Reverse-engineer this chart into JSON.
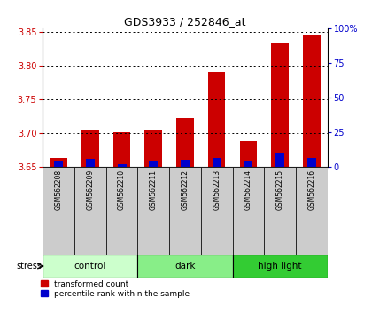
{
  "title": "GDS3933 / 252846_at",
  "samples": [
    "GSM562208",
    "GSM562209",
    "GSM562210",
    "GSM562211",
    "GSM562212",
    "GSM562213",
    "GSM562214",
    "GSM562215",
    "GSM562216"
  ],
  "red_values": [
    3.663,
    3.703,
    3.701,
    3.703,
    3.722,
    3.79,
    3.688,
    3.833,
    3.845
  ],
  "blue_values": [
    3.658,
    3.662,
    3.654,
    3.658,
    3.66,
    3.663,
    3.657,
    3.669,
    3.663
  ],
  "ymin": 3.65,
  "ymax": 3.855,
  "yticks": [
    3.65,
    3.7,
    3.75,
    3.8,
    3.85
  ],
  "y2ticks": [
    0,
    25,
    50,
    75,
    100
  ],
  "groups": [
    {
      "label": "control",
      "start": 0,
      "end": 3,
      "color": "#ccffcc"
    },
    {
      "label": "dark",
      "start": 3,
      "end": 6,
      "color": "#88ee88"
    },
    {
      "label": "high light",
      "start": 6,
      "end": 9,
      "color": "#33cc33"
    }
  ],
  "stress_label": "stress",
  "legend_red": "transformed count",
  "legend_blue": "percentile rank within the sample",
  "bar_width": 0.55,
  "blue_bar_width": 0.28,
  "left_color": "#cc0000",
  "right_color": "#0000cc",
  "tick_label_color_left": "#cc0000",
  "tick_label_color_right": "#0000cc",
  "title_color": "#000000",
  "background_color": "#ffffff",
  "plot_bg_color": "#ffffff",
  "xticklabel_bg": "#cccccc",
  "grid_color": "#000000",
  "ytick_fontsize": 7,
  "title_fontsize": 9
}
